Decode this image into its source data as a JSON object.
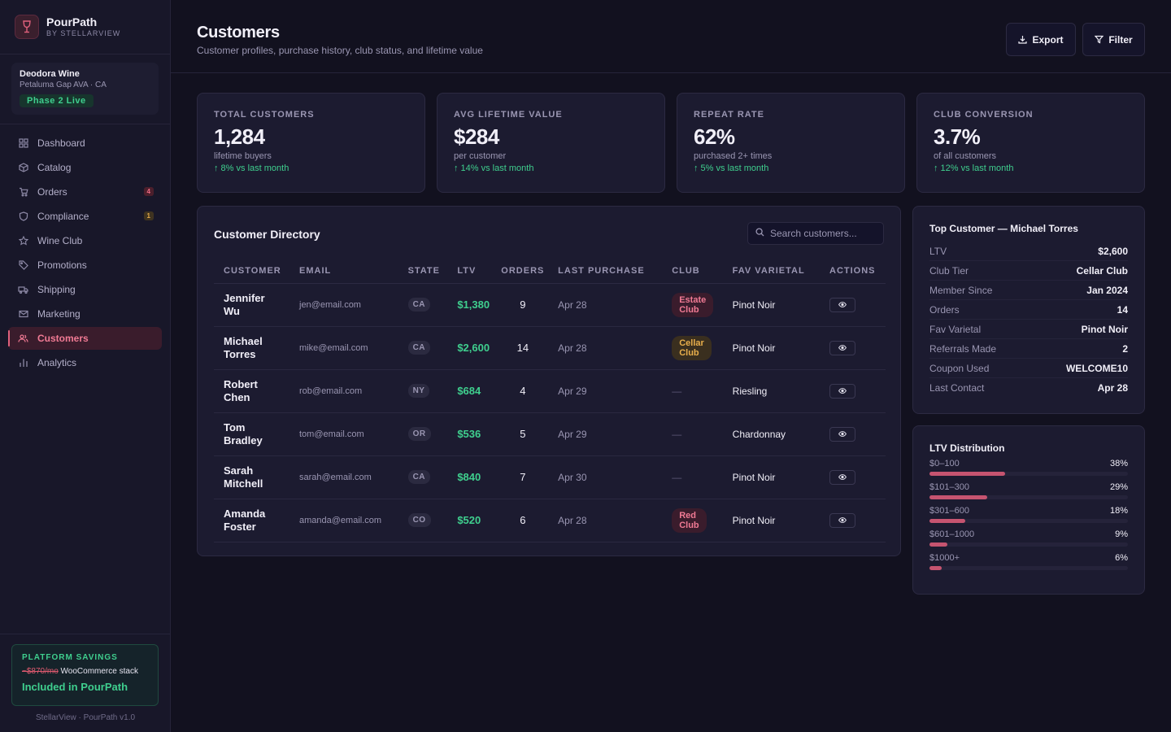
{
  "brand": {
    "name": "PourPath",
    "sub": "BY STELLARVIEW"
  },
  "winery": {
    "name": "Deodora Wine",
    "location": "Petaluma Gap AVA · CA",
    "phase": "Phase 2 Live"
  },
  "nav": [
    {
      "label": "Dashboard",
      "icon": "dashboard-icon",
      "badge": ""
    },
    {
      "label": "Catalog",
      "icon": "box-icon",
      "badge": ""
    },
    {
      "label": "Orders",
      "icon": "cart-icon",
      "badge": "4"
    },
    {
      "label": "Compliance",
      "icon": "shield-icon",
      "badge": "1"
    },
    {
      "label": "Wine Club",
      "icon": "star-icon",
      "badge": ""
    },
    {
      "label": "Promotions",
      "icon": "tag-icon",
      "badge": ""
    },
    {
      "label": "Shipping",
      "icon": "truck-icon",
      "badge": ""
    },
    {
      "label": "Marketing",
      "icon": "mail-icon",
      "badge": ""
    },
    {
      "label": "Customers",
      "icon": "users-icon",
      "badge": ""
    },
    {
      "label": "Analytics",
      "icon": "bar-chart-icon",
      "badge": ""
    }
  ],
  "savings": {
    "title": "PLATFORM SAVINGS",
    "old_price": "~$870/mo",
    "stack": "WooCommerce stack",
    "main": "Included in PourPath"
  },
  "footer": "StellarView · PourPath v1.0",
  "header": {
    "title": "Customers",
    "subtitle": "Customer profiles, purchase history, club status, and lifetime value",
    "export_label": "Export",
    "filter_label": "Filter"
  },
  "stats": [
    {
      "label": "TOTAL CUSTOMERS",
      "value": "1,284",
      "sub": "lifetime buyers",
      "trend": "↑ 8% vs last month"
    },
    {
      "label": "AVG LIFETIME VALUE",
      "value": "$284",
      "sub": "per customer",
      "trend": "↑ 14% vs last month"
    },
    {
      "label": "REPEAT RATE",
      "value": "62%",
      "sub": "purchased 2+ times",
      "trend": "↑ 5% vs last month"
    },
    {
      "label": "CLUB CONVERSION",
      "value": "3.7%",
      "sub": "of all customers",
      "trend": "↑ 12% vs last month"
    }
  ],
  "directory": {
    "title": "Customer Directory",
    "search_placeholder": "Search customers...",
    "columns": [
      "CUSTOMER",
      "EMAIL",
      "STATE",
      "LTV",
      "ORDERS",
      "LAST PURCHASE",
      "CLUB",
      "FAV VARIETAL",
      "ACTIONS"
    ],
    "rows": [
      {
        "first": "Jennifer",
        "last": "Wu",
        "email": "jen@email.com",
        "state": "CA",
        "ltv": "$1,380",
        "orders": "9",
        "last_purchase": "Apr 28",
        "club_l1": "Estate",
        "club_l2": "Club",
        "varietal": "Pinot Noir"
      },
      {
        "first": "Michael",
        "last": "Torres",
        "email": "mike@email.com",
        "state": "CA",
        "ltv": "$2,600",
        "orders": "14",
        "last_purchase": "Apr 28",
        "club_l1": "Cellar",
        "club_l2": "Club",
        "varietal": "Pinot Noir"
      },
      {
        "first": "Robert",
        "last": "Chen",
        "email": "rob@email.com",
        "state": "NY",
        "ltv": "$684",
        "orders": "4",
        "last_purchase": "Apr 29",
        "club_l1": "—",
        "club_l2": "",
        "varietal": "Riesling"
      },
      {
        "first": "Tom",
        "last": "Bradley",
        "email": "tom@email.com",
        "state": "OR",
        "ltv": "$536",
        "orders": "5",
        "last_purchase": "Apr 29",
        "club_l1": "—",
        "club_l2": "",
        "varietal": "Chardonnay"
      },
      {
        "first": "Sarah",
        "last": "Mitchell",
        "email": "sarah@email.com",
        "state": "CA",
        "ltv": "$840",
        "orders": "7",
        "last_purchase": "Apr 30",
        "club_l1": "—",
        "club_l2": "",
        "varietal": "Pinot Noir"
      },
      {
        "first": "Amanda",
        "last": "Foster",
        "email": "amanda@email.com",
        "state": "CO",
        "ltv": "$520",
        "orders": "6",
        "last_purchase": "Apr 28",
        "club_l1": "Red",
        "club_l2": "Club",
        "varietal": "Pinot Noir"
      }
    ]
  },
  "top_customer": {
    "title": "Top Customer — Michael Torres",
    "rows": [
      {
        "k": "LTV",
        "v": "$2,600"
      },
      {
        "k": "Club Tier",
        "v": "Cellar Club"
      },
      {
        "k": "Member Since",
        "v": "Jan 2024"
      },
      {
        "k": "Orders",
        "v": "14"
      },
      {
        "k": "Fav Varietal",
        "v": "Pinot Noir"
      },
      {
        "k": "Referrals Made",
        "v": "2"
      },
      {
        "k": "Coupon Used",
        "v": "WELCOME10"
      },
      {
        "k": "Last Contact",
        "v": "Apr 28"
      }
    ]
  },
  "ltv_distribution": {
    "title": "LTV Distribution",
    "buckets": [
      {
        "label": "$0–100",
        "pct_label": "38%",
        "pct": 38
      },
      {
        "label": "$101–300",
        "pct_label": "29%",
        "pct": 29
      },
      {
        "label": "$301–600",
        "pct_label": "18%",
        "pct": 18
      },
      {
        "label": "$601–1000",
        "pct_label": "9%",
        "pct": 9
      },
      {
        "label": "$1000+",
        "pct_label": "6%",
        "pct": 6
      }
    ]
  },
  "colors": {
    "accent": "#e0607c",
    "positive": "#3fcf8e",
    "warning": "#e8ae4b",
    "background": "#12111f"
  }
}
